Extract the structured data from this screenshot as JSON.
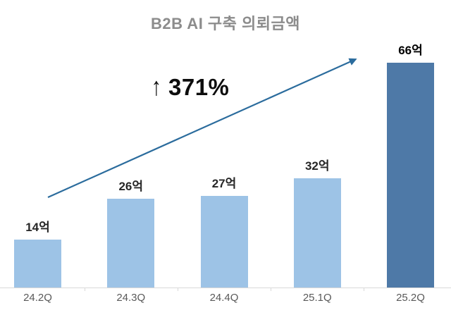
{
  "chart_data": {
    "type": "bar",
    "title": "B2B AI 구축 의뢰금액",
    "categories": [
      "24.2Q",
      "24.3Q",
      "24.4Q",
      "25.1Q",
      "25.2Q"
    ],
    "values": [
      14,
      26,
      27,
      32,
      66
    ],
    "value_labels": [
      "14억",
      "26억",
      "27억",
      "32억",
      "66억"
    ],
    "unit": "억",
    "highlight_index": 4,
    "xlabel": "",
    "ylabel": "",
    "ylim": [
      0,
      85
    ],
    "grid": false,
    "legend": false,
    "annotation": {
      "arrow_glyph": "↑",
      "text": "371%",
      "meaning": "increase from 24.2Q to 25.2Q"
    }
  },
  "colors": {
    "bar": "#9DC3E6",
    "bar_highlight": "#4E79A7",
    "trend_arrow": "#2B6C9D",
    "title_text": "#8C8C8C",
    "axis_line": "#D9D9D9",
    "tick_label": "#595959",
    "value_label": "#262626",
    "annotation_text": "#0D0D0D"
  }
}
